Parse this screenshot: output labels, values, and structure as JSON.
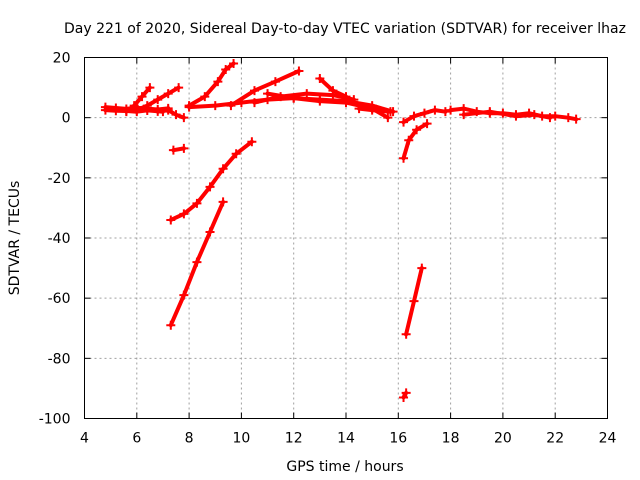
{
  "chart_data": {
    "type": "scatter",
    "title": "Day 221 of 2020, Sidereal Day-to-day VTEC variation (SDTVAR) for receiver lhaz",
    "xlabel": "GPS time / hours",
    "ylabel": "SDTVAR / TECUs",
    "xlim": [
      4,
      24
    ],
    "ylim": [
      -100,
      20
    ],
    "xticks": [
      4,
      6,
      8,
      10,
      12,
      14,
      16,
      18,
      20,
      22,
      24
    ],
    "yticks": [
      -100,
      -80,
      -60,
      -40,
      -20,
      0,
      20
    ],
    "grid": true,
    "marker": "plus",
    "color": "#ff0000",
    "series": [
      {
        "name": "s01",
        "x": [
          4.8,
          5.2,
          5.6,
          6.0,
          6.4,
          6.8,
          7.2
        ],
        "y": [
          3.5,
          3.2,
          2.9,
          3.3,
          3.0,
          2.7,
          3.1
        ]
      },
      {
        "name": "s02",
        "x": [
          4.8,
          5.2,
          5.6,
          6.0,
          6.4,
          6.8,
          7.0
        ],
        "y": [
          2.5,
          2.3,
          2.2,
          2.0,
          2.4,
          2.1,
          2.0
        ]
      },
      {
        "name": "s03",
        "x": [
          5.6,
          5.9,
          6.2,
          6.5
        ],
        "y": [
          2.0,
          4.0,
          7.0,
          10.0
        ]
      },
      {
        "name": "s04",
        "x": [
          6.0,
          6.4,
          6.8,
          7.2,
          7.6
        ],
        "y": [
          2.5,
          4.0,
          6.0,
          8.0,
          10.0
        ]
      },
      {
        "name": "s05",
        "x": [
          7.2,
          7.5,
          7.8
        ],
        "y": [
          2.5,
          1.0,
          0.0
        ]
      },
      {
        "name": "s06",
        "x": [
          7.4,
          7.8
        ],
        "y": [
          -10.8,
          -10.2
        ]
      },
      {
        "name": "s07",
        "x": [
          7.3,
          7.8,
          8.3,
          8.8,
          9.3,
          9.8,
          10.4
        ],
        "y": [
          -34,
          -32,
          -28.5,
          -23,
          -17,
          -12,
          -8
        ]
      },
      {
        "name": "s08",
        "x": [
          7.3,
          7.8,
          8.3,
          8.8,
          9.3
        ],
        "y": [
          -69,
          -59,
          -48,
          -38,
          -28
        ]
      },
      {
        "name": "s09",
        "x": [
          8.0,
          8.6,
          9.1,
          9.4,
          9.7
        ],
        "y": [
          4.0,
          7.0,
          12.0,
          16.0,
          18.0
        ]
      },
      {
        "name": "s10",
        "x": [
          8.0,
          9.0,
          10.0,
          11.0,
          12.0,
          13.0,
          14.0,
          15.0,
          15.8
        ],
        "y": [
          3.5,
          4.0,
          5.0,
          6.0,
          6.5,
          6.0,
          5.5,
          4.0,
          2.0
        ]
      },
      {
        "name": "s11",
        "x": [
          9.6,
          10.5,
          11.3,
          12.2
        ],
        "y": [
          4.0,
          9.0,
          12.0,
          15.5
        ]
      },
      {
        "name": "s12",
        "x": [
          10.5,
          11.5,
          12.5,
          13.5,
          14.3
        ],
        "y": [
          5.0,
          7.0,
          8.0,
          7.5,
          6.0
        ]
      },
      {
        "name": "s13",
        "x": [
          11.0,
          12.0,
          13.0,
          14.0,
          15.0,
          15.6
        ],
        "y": [
          8.0,
          6.5,
          5.5,
          5.0,
          3.0,
          0.0
        ]
      },
      {
        "name": "s14",
        "x": [
          13.0,
          13.5,
          14.0
        ],
        "y": [
          13.0,
          9.0,
          7.0
        ]
      },
      {
        "name": "s15",
        "x": [
          14.5,
          15.0,
          15.7
        ],
        "y": [
          3.0,
          2.5,
          2.0
        ]
      },
      {
        "name": "s16",
        "x": [
          16.2,
          16.4,
          16.7,
          17.1
        ],
        "y": [
          -13.5,
          -7.5,
          -4.0,
          -2.0
        ]
      },
      {
        "name": "s17",
        "x": [
          16.2,
          16.6,
          17.0,
          17.4,
          17.8
        ],
        "y": [
          -1.5,
          0.5,
          1.5,
          2.5,
          2.0
        ]
      },
      {
        "name": "s18",
        "x": [
          16.3,
          16.6,
          16.9
        ],
        "y": [
          -72,
          -61,
          -50
        ]
      },
      {
        "name": "s19",
        "x": [
          16.2,
          16.3
        ],
        "y": [
          -93,
          -91.5
        ]
      },
      {
        "name": "s20",
        "x": [
          18.0,
          18.5,
          19.0,
          19.5,
          20.0,
          20.5,
          21.0,
          21.5,
          22.0,
          22.5,
          22.8
        ],
        "y": [
          2.5,
          3.0,
          2.0,
          1.5,
          1.5,
          1.0,
          1.5,
          0.5,
          0.5,
          0.0,
          -0.5
        ]
      },
      {
        "name": "s21",
        "x": [
          18.5,
          19.5,
          20.5,
          21.2,
          21.8
        ],
        "y": [
          1.0,
          2.0,
          0.5,
          1.0,
          0.0
        ]
      }
    ]
  }
}
